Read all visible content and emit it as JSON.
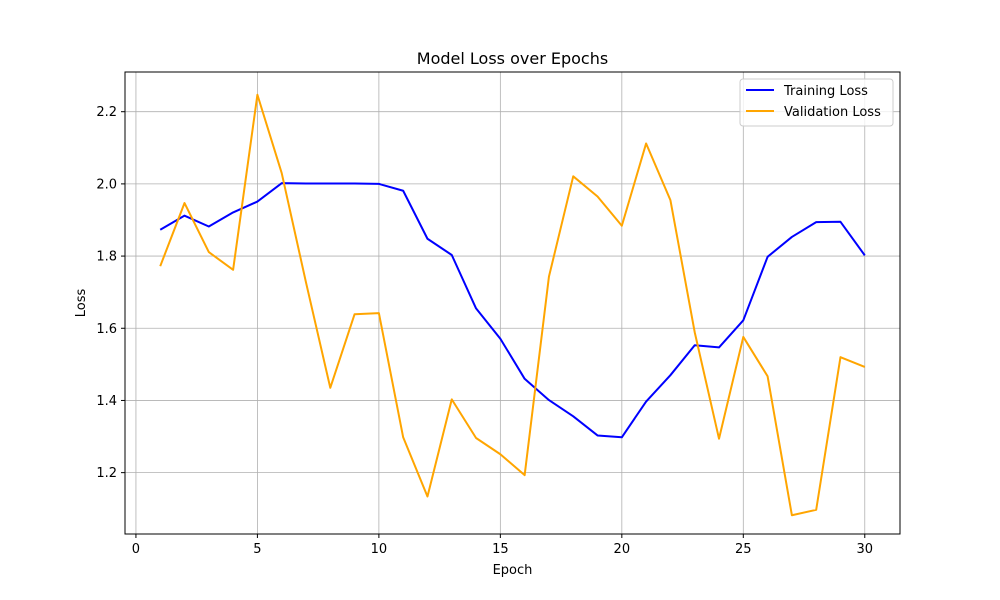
{
  "chart_data": {
    "type": "line",
    "title": "Model Loss over Epochs",
    "xlabel": "Epoch",
    "ylabel": "Loss",
    "xlim": [
      -0.45,
      31.45
    ],
    "ylim": [
      1.03,
      2.31
    ],
    "xticks": [
      0,
      5,
      10,
      15,
      20,
      25,
      30
    ],
    "yticks": [
      1.2,
      1.4,
      1.6,
      1.8,
      2.0,
      2.2
    ],
    "ytick_labels": [
      "1.2",
      "1.4",
      "1.6",
      "1.8",
      "2.0",
      "2.2"
    ],
    "grid": true,
    "legend_position": "top-right",
    "x": [
      1,
      2,
      3,
      4,
      5,
      6,
      7,
      8,
      9,
      10,
      11,
      12,
      13,
      14,
      15,
      16,
      17,
      18,
      19,
      20,
      21,
      22,
      23,
      24,
      25,
      26,
      27,
      28,
      29,
      30
    ],
    "series": [
      {
        "name": "Training Loss",
        "color": "#0000ff",
        "values": [
          1.873,
          1.912,
          1.882,
          1.921,
          1.951,
          2.002,
          2.001,
          2.001,
          2.001,
          2.0,
          1.981,
          1.848,
          1.803,
          1.655,
          1.571,
          1.46,
          1.401,
          1.356,
          1.303,
          1.298,
          1.397,
          1.47,
          1.553,
          1.547,
          1.622,
          1.798,
          1.853,
          1.894,
          1.895,
          1.802
        ]
      },
      {
        "name": "Validation Loss",
        "color": "#ffa500",
        "values": [
          1.772,
          1.947,
          1.811,
          1.762,
          2.247,
          2.03,
          1.727,
          1.435,
          1.639,
          1.642,
          1.298,
          1.134,
          1.403,
          1.296,
          1.251,
          1.193,
          1.743,
          2.021,
          1.965,
          1.884,
          2.112,
          1.955,
          1.589,
          1.294,
          1.576,
          1.467,
          1.082,
          1.097,
          1.52,
          1.493
        ]
      }
    ]
  }
}
